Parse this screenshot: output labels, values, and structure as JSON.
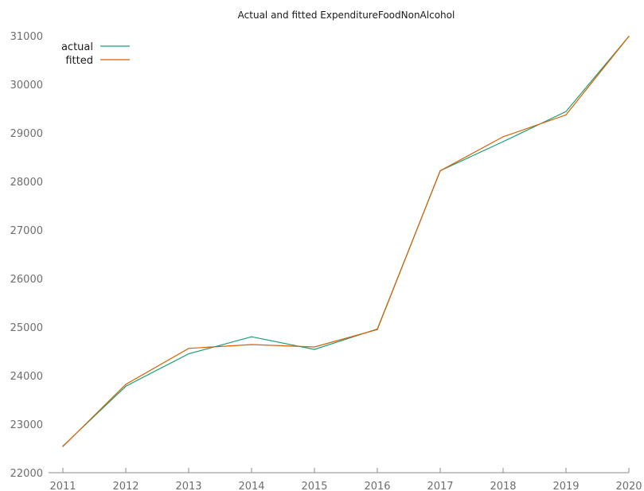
{
  "chart_data": {
    "type": "line",
    "title": "Actual and fitted ExpenditureFoodNonAlcohol",
    "xlabel": "",
    "ylabel": "",
    "x": [
      2011,
      2012,
      2013,
      2014,
      2015,
      2016,
      2017,
      2018,
      2019,
      2020
    ],
    "x_ticks": [
      "2011",
      "2012",
      "2013",
      "2014",
      "2015",
      "2016",
      "2017",
      "2018",
      "2019",
      "2020"
    ],
    "y_ticks": [
      "22000",
      "23000",
      "24000",
      "25000",
      "26000",
      "27000",
      "28000",
      "29000",
      "30000",
      "31000"
    ],
    "ylim": [
      22000,
      31000
    ],
    "xlim": [
      2011,
      2020
    ],
    "grid": false,
    "legend_position": "top-left",
    "series": [
      {
        "name": "actual",
        "color": "#1b9e77",
        "values": [
          22550,
          23780,
          24450,
          24800,
          24540,
          24960,
          28220,
          28820,
          29440,
          30990
        ]
      },
      {
        "name": "fitted",
        "color": "#d95f02",
        "values": [
          22540,
          23820,
          24560,
          24640,
          24590,
          24950,
          28220,
          28920,
          29370,
          30990
        ]
      }
    ]
  }
}
